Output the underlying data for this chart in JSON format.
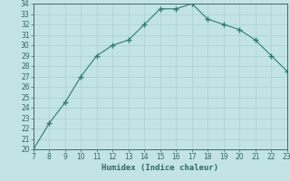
{
  "x": [
    7,
    8,
    9,
    10,
    11,
    12,
    13,
    14,
    15,
    16,
    17,
    18,
    19,
    20,
    21,
    22,
    23
  ],
  "y": [
    20,
    22.5,
    24.5,
    27,
    29,
    30,
    30.5,
    32,
    33.5,
    33.5,
    34,
    32.5,
    32,
    31.5,
    30.5,
    29,
    27.5
  ],
  "xlabel": "Humidex (Indice chaleur)",
  "xlim": [
    7,
    23
  ],
  "ylim": [
    20,
    34
  ],
  "yticks": [
    20,
    21,
    22,
    23,
    24,
    25,
    26,
    27,
    28,
    29,
    30,
    31,
    32,
    33,
    34
  ],
  "xticks": [
    7,
    8,
    9,
    10,
    11,
    12,
    13,
    14,
    15,
    16,
    17,
    18,
    19,
    20,
    21,
    22,
    23
  ],
  "line_color": "#2e7d6e",
  "bg_color": "#c2e4e4",
  "grid_color": "#aad0d0",
  "marker": "+",
  "tick_label_size": 5.5,
  "xlabel_size": 6.5
}
